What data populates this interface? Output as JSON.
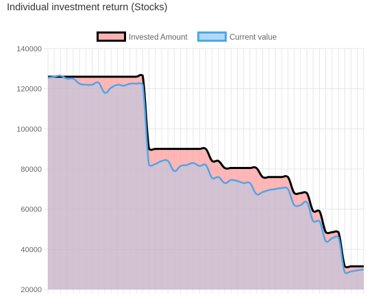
{
  "page": {
    "title": "Individual investment return (Stocks)"
  },
  "chart_data": {
    "type": "area",
    "title": "Individual investment return (Stocks)",
    "xlabel": "",
    "ylabel": "",
    "ylim": [
      20000,
      140000
    ],
    "yticks": [
      140000,
      120000,
      100000,
      80000,
      60000,
      40000,
      20000
    ],
    "ytick_labels": [
      "140000",
      "120000",
      "100000",
      "80000",
      "60000",
      "40000",
      "20000"
    ],
    "grid": true,
    "legend_position": "top",
    "x_count": 51,
    "x": [
      0,
      1,
      2,
      3,
      4,
      5,
      6,
      7,
      8,
      9,
      10,
      11,
      12,
      13,
      14,
      15,
      16,
      17,
      18,
      19,
      20,
      21,
      22,
      23,
      24,
      25,
      26,
      27,
      28,
      29,
      30,
      31,
      32,
      33,
      34,
      35,
      36,
      37,
      38,
      39,
      40,
      41,
      42,
      43,
      44,
      45,
      46,
      47,
      48,
      49,
      50
    ],
    "series": [
      {
        "name": "Invested Amount",
        "color": "#000000",
        "fill": "#ff9e9e",
        "values": [
          126000,
          126000,
          126000,
          126000,
          126000,
          126000,
          126000,
          126000,
          126000,
          126000,
          126000,
          126000,
          126000,
          126000,
          126000,
          126500,
          90000,
          90000,
          90000,
          90000,
          90000,
          90000,
          90000,
          90000,
          90000,
          90000,
          84000,
          84000,
          80500,
          80500,
          80500,
          80500,
          80500,
          80500,
          76000,
          76000,
          76000,
          76000,
          76000,
          68000,
          68000,
          68000,
          59000,
          59000,
          48500,
          48500,
          48500,
          31500,
          31500,
          31500,
          31500
        ]
      },
      {
        "name": "Current value",
        "color": "#4da6e8",
        "fill": "#9bd0f5",
        "values": [
          125500,
          126000,
          126500,
          125000,
          125000,
          122500,
          122000,
          122000,
          123000,
          118000,
          120500,
          122000,
          121500,
          122500,
          122500,
          122000,
          82000,
          82500,
          84000,
          84000,
          79000,
          81500,
          82000,
          83000,
          81500,
          82000,
          75500,
          76000,
          73000,
          74500,
          74000,
          73000,
          73000,
          67500,
          68500,
          69500,
          70000,
          70500,
          70000,
          62000,
          62000,
          63500,
          54000,
          54000,
          44000,
          45500,
          46000,
          28500,
          29000,
          29500,
          30000
        ]
      }
    ]
  }
}
